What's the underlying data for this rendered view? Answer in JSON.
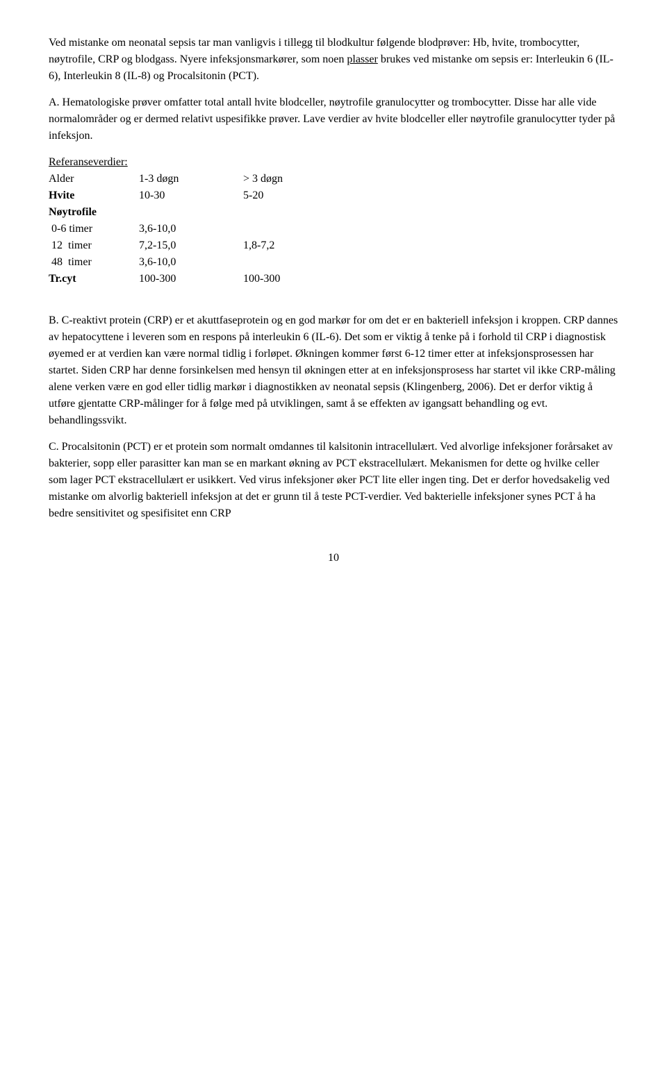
{
  "para1": {
    "a": "Ved mistanke om neonatal sepsis tar man vanligvis i tillegg til blodkultur følgende blodprøver: Hb, hvite, trombocytter, nøytrofile, CRP og blodgass. Nyere infeksjonsmarkører, som noen ",
    "u": "plasser",
    "b": " brukes ved mistanke om sepsis er: Interleukin 6 (IL-6), Interleukin 8 (IL-8) og Procalsitonin (PCT)."
  },
  "para2": "A. Hematologiske prøver omfatter total antall hvite blodceller, nøytrofile granulocytter og trombocytter. Disse har alle vide normalområder og er dermed relativt uspesifikke prøver. Lave verdier av hvite blodceller eller nøytrofile granulocytter tyder på infeksjon.",
  "ref_label": "Referanseverdier:",
  "table": {
    "rows": [
      {
        "c1": "Alder",
        "c2": "1-3 døgn",
        "c3": "> 3 døgn",
        "bold1": false
      },
      {
        "c1": "Hvite",
        "c2": "10-30",
        "c3": "5-20",
        "bold1": true
      },
      {
        "c1": "Nøytrofile",
        "c2": "",
        "c3": "",
        "bold1": true
      },
      {
        "c1": " 0-6 timer",
        "c2": "3,6-10,0",
        "c3": "",
        "bold1": false
      },
      {
        "c1": " 12  timer",
        "c2": "7,2-15,0",
        "c3": "1,8-7,2",
        "bold1": false
      },
      {
        "c1": " 48  timer",
        "c2": "3,6-10,0",
        "c3": "",
        "bold1": false
      },
      {
        "c1": "Tr.cyt",
        "c2": "100-300",
        "c3": "100-300",
        "bold1": true
      }
    ]
  },
  "para3": "B. C-reaktivt protein (CRP) er et akuttfaseprotein og en god markør for om det er en bakteriell infeksjon i kroppen. CRP dannes av hepatocyttene i leveren som en respons på interleukin 6 (IL-6). Det som er viktig å tenke på i forhold til CRP i diagnostisk øyemed er at verdien kan være normal tidlig i forløpet. Økningen kommer først 6-12 timer etter at infeksjonsprosessen har startet. Siden CRP har denne forsinkelsen med hensyn til økningen etter at en infeksjonsprosess har startet vil ikke CRP-måling alene verken være en god eller tidlig markør i diagnostikken av neonatal sepsis (Klingenberg, 2006). Det er derfor viktig å utføre gjentatte CRP-målinger for å følge med på utviklingen, samt å se effekten av igangsatt behandling og evt. behandlingssvikt.",
  "para4": "C. Procalsitonin (PCT) er et protein som normalt omdannes til kalsitonin intracellulært. Ved alvorlige infeksjoner forårsaket av bakterier, sopp eller parasitter kan man se en markant økning av PCT ekstracellulært. Mekanismen for dette og hvilke celler som lager PCT ekstracellulært er usikkert. Ved virus infeksjoner øker PCT lite eller ingen ting. Det er derfor hovedsakelig ved mistanke om alvorlig bakteriell infeksjon at det er grunn til å teste PCT-verdier. Ved bakterielle infeksjoner synes PCT å ha bedre sensitivitet og spesifisitet enn CRP",
  "page_no": "10"
}
